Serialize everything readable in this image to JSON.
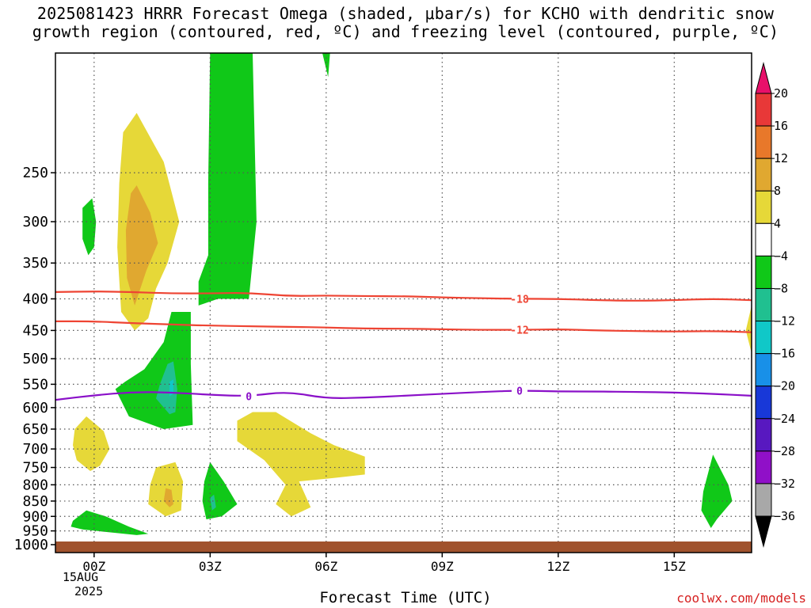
{
  "title": {
    "line1": "2025081423 HRRR Forecast Omega (shaded, μbar/s) for KCHO with dendritic snow",
    "line2": "growth region (contoured, red, ºC) and freezing level (contoured, purple, ºC)"
  },
  "xaxis": {
    "label": "Forecast Time (UTC)",
    "date_day": "15AUG",
    "date_year": "2025"
  },
  "credit": "coolwx.com/models",
  "chart_data": {
    "type": "contour",
    "x": {
      "label": "Forecast Time (UTC)",
      "unit": "hours since 2025-08-15 00Z",
      "range": [
        -1,
        17
      ]
    },
    "y": {
      "label": "",
      "unit": "hPa",
      "scale": "log",
      "range": [
        1030,
        160
      ],
      "inverted": true
    },
    "x_ticks": [
      {
        "v": 0,
        "label": "00Z"
      },
      {
        "v": 3,
        "label": "03Z"
      },
      {
        "v": 6,
        "label": "06Z"
      },
      {
        "v": 9,
        "label": "09Z"
      },
      {
        "v": 12,
        "label": "12Z"
      },
      {
        "v": 15,
        "label": "15Z"
      }
    ],
    "y_ticks": [
      250,
      300,
      350,
      400,
      450,
      500,
      550,
      600,
      650,
      700,
      750,
      800,
      850,
      900,
      950,
      1000
    ],
    "grid": true,
    "ground_level_hPa": 1000,
    "colors": {
      "ground": "#a0522d",
      "isotherm_dgz": "#ee4433",
      "isotherm_freezing": "#8a10c8"
    },
    "colorbar": {
      "labels": [
        "20",
        "16",
        "12",
        "8",
        "4",
        "−4",
        "−8",
        "−12",
        "−16",
        "−20",
        "−24",
        "−28",
        "−32",
        "−36"
      ],
      "colors": [
        "#e8106a",
        "#e83838",
        "#e8782a",
        "#e0a830",
        "#e6d838",
        "#ffffff",
        "#10c818",
        "#20c090",
        "#10c8c8",
        "#1890e8",
        "#1838d8",
        "#5818c0",
        "#9010c8",
        "#a8a8a8",
        "#000000"
      ],
      "bounds": [
        20,
        16,
        12,
        8,
        4,
        -4,
        -8,
        -12,
        -16,
        -20,
        -24,
        -28,
        -32,
        -36
      ]
    },
    "isotherms": [
      {
        "name": "-18",
        "value": -18,
        "color": "#ee4433",
        "label_at": 11,
        "points": [
          [
            -1,
            390
          ],
          [
            0,
            389
          ],
          [
            1,
            390
          ],
          [
            2,
            392
          ],
          [
            3,
            392
          ],
          [
            4,
            391
          ],
          [
            5,
            396
          ],
          [
            6,
            395
          ],
          [
            7,
            396
          ],
          [
            8,
            396
          ],
          [
            9,
            398
          ],
          [
            10,
            399
          ],
          [
            11,
            400
          ],
          [
            12,
            400
          ],
          [
            13,
            402
          ],
          [
            14,
            403
          ],
          [
            15,
            402
          ],
          [
            16,
            400
          ],
          [
            17,
            402
          ]
        ]
      },
      {
        "name": "-12",
        "value": -12,
        "color": "#ee4433",
        "label_at": 11,
        "points": [
          [
            -1,
            435
          ],
          [
            0,
            435
          ],
          [
            1,
            438
          ],
          [
            2,
            440
          ],
          [
            3,
            442
          ],
          [
            4,
            443
          ],
          [
            5,
            444
          ],
          [
            6,
            445
          ],
          [
            7,
            447
          ],
          [
            8,
            447
          ],
          [
            9,
            448
          ],
          [
            10,
            449
          ],
          [
            11,
            449
          ],
          [
            12,
            448
          ],
          [
            13,
            450
          ],
          [
            14,
            451
          ],
          [
            15,
            452
          ],
          [
            16,
            451
          ],
          [
            17,
            453
          ]
        ]
      },
      {
        "name": "0",
        "value": 0,
        "color": "#8a10c8",
        "label_at": 11,
        "label_at2": 4,
        "points": [
          [
            -1,
            583
          ],
          [
            0,
            573
          ],
          [
            1,
            566
          ],
          [
            2,
            567
          ],
          [
            3,
            572
          ],
          [
            4,
            575
          ],
          [
            5,
            565
          ],
          [
            6,
            580
          ],
          [
            7,
            578
          ],
          [
            8,
            574
          ],
          [
            9,
            570
          ],
          [
            10,
            566
          ],
          [
            11,
            563
          ],
          [
            12,
            565
          ],
          [
            13,
            565
          ],
          [
            14,
            566
          ],
          [
            15,
            567
          ],
          [
            16,
            570
          ],
          [
            17,
            574
          ]
        ]
      }
    ],
    "shaded_regions": [
      {
        "name": "updraft-yellow-upper",
        "class": "4 to 8",
        "color": "#e6d838",
        "points": [
          [
            0.75,
            215
          ],
          [
            1.1,
            200
          ],
          [
            1.8,
            240
          ],
          [
            2.2,
            300
          ],
          [
            1.9,
            350
          ],
          [
            1.6,
            385
          ],
          [
            1.4,
            430
          ],
          [
            1.05,
            450
          ],
          [
            0.7,
            420
          ],
          [
            0.6,
            330
          ],
          [
            0.65,
            260
          ]
        ]
      },
      {
        "name": "updraft-orange-upper",
        "class": "8 to 12",
        "color": "#e0a830",
        "points": [
          [
            0.95,
            270
          ],
          [
            1.1,
            262
          ],
          [
            1.45,
            290
          ],
          [
            1.65,
            325
          ],
          [
            1.35,
            360
          ],
          [
            1.05,
            410
          ],
          [
            0.85,
            370
          ],
          [
            0.82,
            310
          ]
        ]
      },
      {
        "name": "downdraft-green-left",
        "class": "-4 to -8",
        "color": "#10c818",
        "points": [
          [
            -0.3,
            285
          ],
          [
            -0.05,
            275
          ],
          [
            0.05,
            300
          ],
          [
            0,
            330
          ],
          [
            -0.15,
            340
          ],
          [
            -0.3,
            320
          ]
        ]
      },
      {
        "name": "downdraft-green-column",
        "class": "-4 to -8",
        "color": "#10c818",
        "points": [
          [
            3.0,
            160
          ],
          [
            4.1,
            160
          ],
          [
            4.2,
            300
          ],
          [
            4.0,
            400
          ],
          [
            3.2,
            400
          ],
          [
            2.7,
            410
          ],
          [
            2.7,
            375
          ],
          [
            2.95,
            340
          ],
          [
            2.95,
            260
          ]
        ]
      },
      {
        "name": "downdraft-green-mid",
        "class": "-4 to -8",
        "color": "#10c818",
        "points": [
          [
            2.0,
            420
          ],
          [
            2.5,
            420
          ],
          [
            2.5,
            510
          ],
          [
            2.55,
            640
          ],
          [
            1.8,
            650
          ],
          [
            0.9,
            620
          ],
          [
            0.55,
            560
          ],
          [
            0.8,
            545
          ],
          [
            1.3,
            520
          ],
          [
            1.8,
            470
          ]
        ]
      },
      {
        "name": "downdraft-teal-mid",
        "class": "-8 to -12",
        "color": "#20c090",
        "points": [
          [
            1.9,
            510
          ],
          [
            2.05,
            505
          ],
          [
            2.15,
            560
          ],
          [
            2.1,
            610
          ],
          [
            1.95,
            615
          ],
          [
            1.6,
            580
          ],
          [
            1.7,
            550
          ]
        ]
      },
      {
        "name": "downdraft-cyan-mid",
        "class": "-12 to -16",
        "color": "#10c8c8",
        "points": [
          [
            1.95,
            545
          ],
          [
            2.05,
            540
          ],
          [
            2.05,
            570
          ],
          [
            1.95,
            575
          ]
        ]
      },
      {
        "name": "updraft-yellow-700",
        "class": "4 to 8",
        "color": "#e6d838",
        "points": [
          [
            -0.5,
            650
          ],
          [
            -0.2,
            620
          ],
          [
            0.25,
            655
          ],
          [
            0.4,
            700
          ],
          [
            0.15,
            745
          ],
          [
            -0.1,
            760
          ],
          [
            -0.45,
            730
          ],
          [
            -0.55,
            690
          ]
        ]
      },
      {
        "name": "updraft-yellow-center",
        "class": "4 to 8",
        "color": "#e6d838",
        "points": [
          [
            4.1,
            610
          ],
          [
            4.7,
            610
          ],
          [
            5.6,
            660
          ],
          [
            6.2,
            690
          ],
          [
            7.0,
            720
          ],
          [
            7.0,
            770
          ],
          [
            6.2,
            780
          ],
          [
            5.3,
            790
          ],
          [
            5.6,
            870
          ],
          [
            5.1,
            900
          ],
          [
            4.7,
            860
          ],
          [
            4.95,
            800
          ],
          [
            4.4,
            730
          ],
          [
            3.7,
            680
          ],
          [
            3.7,
            630
          ]
        ]
      },
      {
        "name": "updraft-yellow-850",
        "class": "4 to 8",
        "color": "#e6d838",
        "points": [
          [
            1.6,
            750
          ],
          [
            2.1,
            735
          ],
          [
            2.3,
            790
          ],
          [
            2.25,
            880
          ],
          [
            1.85,
            900
          ],
          [
            1.4,
            860
          ],
          [
            1.45,
            800
          ]
        ]
      },
      {
        "name": "updraft-orange-850",
        "class": "8 to 12",
        "color": "#e0a830",
        "points": [
          [
            1.85,
            810
          ],
          [
            2.0,
            815
          ],
          [
            2.05,
            860
          ],
          [
            1.95,
            870
          ],
          [
            1.8,
            850
          ]
        ]
      },
      {
        "name": "downdraft-green-850",
        "class": "-4 to -8",
        "color": "#10c818",
        "points": [
          [
            3.0,
            735
          ],
          [
            3.35,
            790
          ],
          [
            3.7,
            860
          ],
          [
            3.3,
            900
          ],
          [
            2.9,
            910
          ],
          [
            2.8,
            850
          ],
          [
            2.85,
            790
          ]
        ]
      },
      {
        "name": "downdraft-teal-850",
        "class": "-8 to -12",
        "color": "#20c090",
        "points": [
          [
            3.0,
            840
          ],
          [
            3.1,
            830
          ],
          [
            3.15,
            870
          ],
          [
            3.05,
            880
          ]
        ]
      },
      {
        "name": "downdraft-green-950",
        "class": "-4 to -8",
        "color": "#10c818",
        "points": [
          [
            -0.55,
            915
          ],
          [
            -0.2,
            880
          ],
          [
            0.3,
            900
          ],
          [
            0.9,
            935
          ],
          [
            1.4,
            960
          ],
          [
            1.1,
            965
          ],
          [
            0.4,
            955
          ],
          [
            -0.3,
            945
          ],
          [
            -0.6,
            935
          ]
        ]
      },
      {
        "name": "downdraft-green-right",
        "class": "-4 to -8",
        "color": "#10c818",
        "points": [
          [
            16.0,
            715
          ],
          [
            16.4,
            800
          ],
          [
            16.5,
            850
          ],
          [
            16.1,
            910
          ],
          [
            15.95,
            940
          ],
          [
            15.7,
            880
          ],
          [
            15.75,
            820
          ]
        ]
      },
      {
        "name": "updraft-yellow-edge",
        "class": "4 to 8",
        "color": "#e6d838",
        "points": [
          [
            17.0,
            410
          ],
          [
            17.0,
            490
          ],
          [
            16.85,
            450
          ]
        ]
      },
      {
        "name": "downdraft-green-top",
        "class": "-4 to -8",
        "color": "#10c818",
        "points": [
          [
            5.9,
            160
          ],
          [
            6.1,
            160
          ],
          [
            6.05,
            175
          ]
        ]
      }
    ]
  }
}
